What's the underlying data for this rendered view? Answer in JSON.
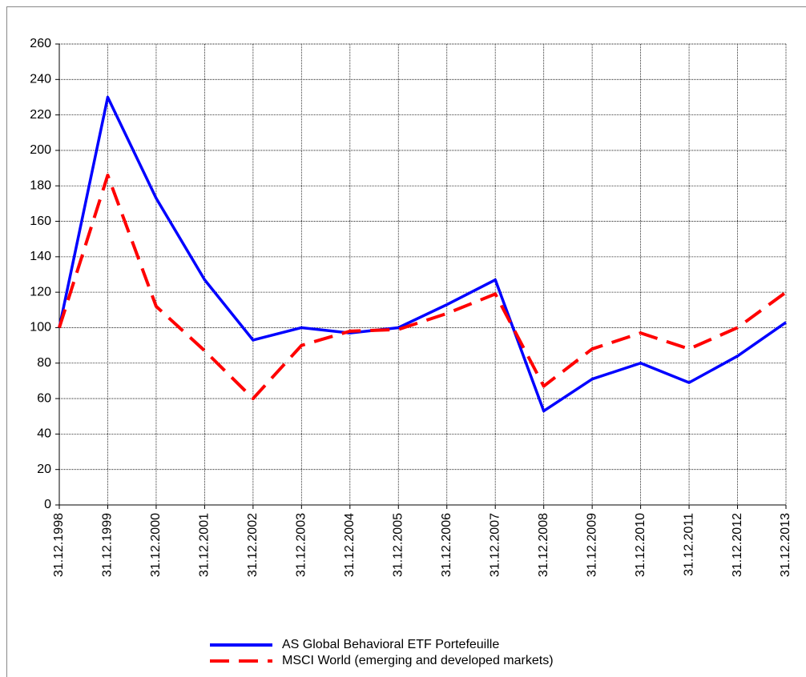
{
  "chart_data": {
    "type": "line",
    "categories": [
      "31.12.1998",
      "31.12.1999",
      "31.12.2000",
      "31.12.2001",
      "31.12.2002",
      "31.12.2003",
      "31.12.2004",
      "31.12.2005",
      "31.12.2006",
      "31.12.2007",
      "31.12.2008",
      "31.12.2009",
      "31.12.2010",
      "31.12.2011",
      "31.12.2012",
      "31.12.2013"
    ],
    "series": [
      {
        "name": "AS Global Behavioral ETF Portefeuille",
        "color": "#0000ff",
        "dash": false,
        "values": [
          100,
          230,
          173,
          127,
          93,
          100,
          97,
          100,
          113,
          127,
          53,
          71,
          80,
          69,
          84,
          103
        ]
      },
      {
        "name": "MSCI World (emerging and developed markets)",
        "color": "#ff0000",
        "dash": true,
        "values": [
          100,
          186,
          112,
          87,
          60,
          90,
          98,
          99,
          108,
          119,
          67,
          88,
          97,
          88,
          100,
          120
        ]
      }
    ],
    "ylim": [
      0,
      260
    ],
    "yticks": [
      0,
      20,
      40,
      60,
      80,
      100,
      120,
      140,
      160,
      180,
      200,
      220,
      240,
      260
    ],
    "grid": true,
    "legend": "bottom"
  }
}
